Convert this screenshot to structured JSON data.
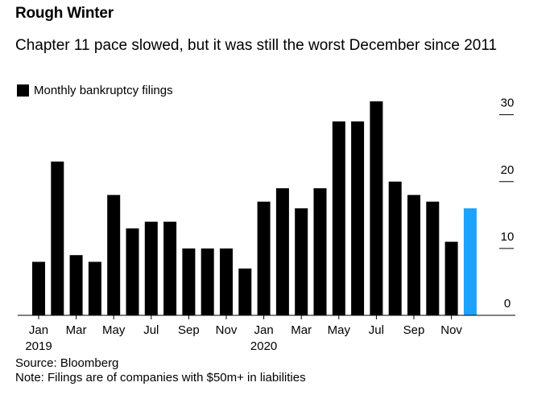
{
  "chart_data": {
    "type": "bar",
    "title": "Rough Winter",
    "subtitle": "Chapter 11 pace slowed, but it was still the worst December since 2011",
    "legend": "Monthly bankruptcy filings",
    "categories": [
      "Jan 2019",
      "Feb 2019",
      "Mar 2019",
      "Apr 2019",
      "May 2019",
      "Jun 2019",
      "Jul 2019",
      "Aug 2019",
      "Sep 2019",
      "Oct 2019",
      "Nov 2019",
      "Dec 2019",
      "Jan 2020",
      "Feb 2020",
      "Mar 2020",
      "Apr 2020",
      "May 2020",
      "Jun 2020",
      "Jul 2020",
      "Aug 2020",
      "Sep 2020",
      "Oct 2020",
      "Nov 2020",
      "Dec 2020"
    ],
    "values": [
      8,
      23,
      9,
      8,
      18,
      13,
      14,
      14,
      10,
      10,
      10,
      7,
      17,
      19,
      16,
      19,
      29,
      29,
      32,
      20,
      18,
      17,
      11,
      16
    ],
    "highlight_index": 23,
    "colors": {
      "bar": "#000000",
      "highlight": "#1aa3ff"
    },
    "ylim": [
      0,
      32
    ],
    "y_ticks": [
      "0",
      "10",
      "20",
      "30"
    ],
    "x_ticks": [
      {
        "index": 0,
        "label": "Jan",
        "sublabel": "2019"
      },
      {
        "index": 2,
        "label": "Mar"
      },
      {
        "index": 4,
        "label": "May"
      },
      {
        "index": 6,
        "label": "Jul"
      },
      {
        "index": 8,
        "label": "Sep"
      },
      {
        "index": 10,
        "label": "Nov"
      },
      {
        "index": 12,
        "label": "Jan",
        "sublabel": "2020"
      },
      {
        "index": 14,
        "label": "Mar"
      },
      {
        "index": 16,
        "label": "May"
      },
      {
        "index": 18,
        "label": "Jul"
      },
      {
        "index": 20,
        "label": "Sep"
      },
      {
        "index": 22,
        "label": "Nov"
      }
    ],
    "source": "Source: Bloomberg",
    "note": "Note: Filings are of companies with $50m+ in liabilities"
  }
}
